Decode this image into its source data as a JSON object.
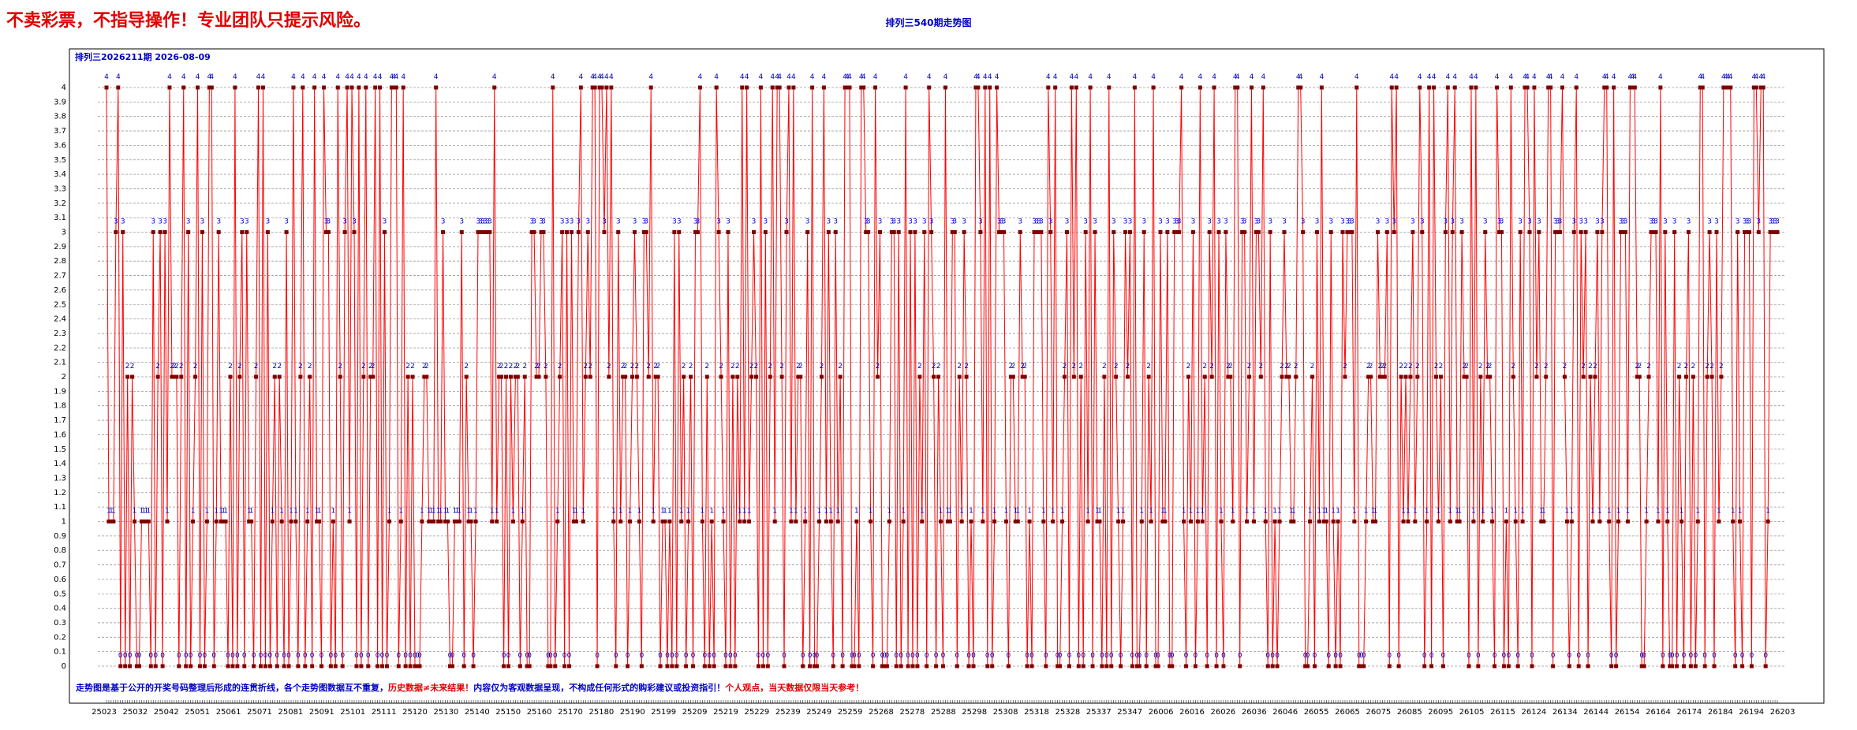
{
  "banner": "不卖彩票，不指导操作！专业团队只提示风险。",
  "chart_title": "排列三540期走势图",
  "chart_data": {
    "type": "line",
    "header": "排列三2026211期 2026-08-09",
    "footer": {
      "blue": "走势图是基于公开的开奖号码整理后形成的连贯折线，各个走势图数据互不重复，",
      "red1": "历史数据≠未来结果！",
      "blue2": "内容仅为客观数据呈现，不构成任何形式的购彩建议或投资指引！",
      "red2": "个人观点，当天数据仅限当天参考！"
    },
    "ylim": [
      0,
      4
    ],
    "y_ticks": [
      "0",
      "0.1",
      "0.2",
      "0.3",
      "0.4",
      "0.5",
      "0.6",
      "0.7",
      "0.8",
      "0.9",
      "1",
      "1.1",
      "1.2",
      "1.3",
      "1.4",
      "1.5",
      "1.6",
      "1.7",
      "1.8",
      "1.9",
      "2",
      "2.1",
      "2.2",
      "2.3",
      "2.4",
      "2.5",
      "2.6",
      "2.7",
      "2.8",
      "2.9",
      "3",
      "3.1",
      "3.2",
      "3.3",
      "3.4",
      "3.5",
      "3.6",
      "3.7",
      "3.8",
      "3.9",
      "4"
    ],
    "x_labels": [
      "25023",
      "25032",
      "25042",
      "25051",
      "25061",
      "25071",
      "25081",
      "25091",
      "25101",
      "25111",
      "25120",
      "25130",
      "25140",
      "25150",
      "25160",
      "25170",
      "25180",
      "25190",
      "25199",
      "25209",
      "25219",
      "25229",
      "25239",
      "25249",
      "25259",
      "25268",
      "25278",
      "25288",
      "25298",
      "25308",
      "25318",
      "25328",
      "25337",
      "25347",
      "26006",
      "26016",
      "26026",
      "26036",
      "26046",
      "26055",
      "26065",
      "26075",
      "26085",
      "26095",
      "26105",
      "26115",
      "26124",
      "26134",
      "26144",
      "26154",
      "26164",
      "26174",
      "26184",
      "26194",
      "26203"
    ],
    "grid": true,
    "line_color": "#ff0000",
    "marker_color": "#800000",
    "label_color": "#0000c8",
    "series": [
      {
        "values": [
          4,
          1,
          1,
          1,
          3,
          4,
          0,
          3,
          0,
          2,
          0,
          2,
          1,
          0,
          0,
          1,
          1,
          1,
          1,
          0,
          3,
          0,
          2,
          3,
          0,
          3,
          1,
          4,
          2,
          2,
          2,
          0,
          2,
          4,
          0,
          3,
          0,
          1,
          2,
          4,
          0,
          3,
          0,
          1,
          4,
          4,
          0,
          1,
          3,
          1,
          1,
          1,
          0,
          2,
          0,
          4,
          0,
          2,
          3,
          0,
          3,
          1,
          1,
          0,
          2,
          4,
          0,
          4,
          0,
          3,
          0,
          1,
          2,
          0,
          2,
          1,
          0,
          3,
          0,
          1,
          4,
          1,
          0,
          2,
          4,
          0,
          1,
          2,
          0,
          4,
          1,
          1,
          0,
          4,
          3,
          3,
          0,
          1,
          0,
          4,
          2,
          0,
          3,
          4,
          1,
          4,
          3,
          0,
          4,
          0,
          2,
          4,
          0,
          2,
          2,
          4,
          0,
          4,
          0,
          3,
          0,
          1,
          4,
          4,
          4,
          0,
          1,
          4,
          0,
          2,
          0,
          2,
          0,
          0,
          0,
          1,
          2,
          2,
          1,
          1,
          1,
          4,
          1,
          1,
          3,
          1,
          1,
          0,
          0,
          1,
          1,
          1,
          3,
          0,
          2,
          1,
          1,
          0,
          1,
          3,
          3,
          3,
          3,
          3,
          3,
          1,
          4,
          1,
          2,
          2,
          0,
          2,
          0,
          2,
          1,
          2,
          2,
          0,
          1,
          2,
          0,
          0,
          3,
          3,
          2,
          2,
          3,
          3,
          2,
          0,
          0,
          4,
          0,
          1,
          2,
          3,
          0,
          3,
          0,
          3,
          1,
          1,
          3,
          4,
          1,
          2,
          3,
          2,
          4,
          4,
          0,
          4,
          4,
          3,
          4,
          2,
          4,
          1,
          0,
          3,
          1,
          2,
          2,
          0,
          1,
          2,
          3,
          2,
          1,
          0,
          3,
          3,
          2,
          4,
          1,
          2,
          2,
          0,
          1,
          1,
          0,
          1,
          0,
          3,
          0,
          3,
          1,
          2,
          0,
          1,
          2,
          0,
          3,
          3,
          4,
          1,
          0,
          2,
          0,
          1,
          0,
          4,
          3,
          2,
          1,
          0,
          3,
          0,
          2,
          0,
          2,
          1,
          4,
          1,
          4,
          1,
          2,
          3,
          2,
          0,
          4,
          0,
          3,
          0,
          2,
          4,
          1,
          4,
          4,
          2,
          0,
          3,
          4,
          1,
          4,
          1,
          2,
          2,
          0,
          1,
          3,
          0,
          4,
          0,
          0,
          1,
          2,
          4,
          1,
          3,
          1,
          0,
          3,
          1,
          2,
          0,
          4,
          4,
          4,
          0,
          0,
          1,
          0,
          4,
          4,
          3,
          3,
          1,
          0,
          4,
          2,
          3,
          0,
          0,
          0,
          1,
          3,
          3,
          0,
          3,
          0,
          1,
          4,
          0,
          3,
          0,
          3,
          0,
          2,
          1,
          3,
          0,
          4,
          3,
          2,
          0,
          2,
          1,
          0,
          4,
          1,
          1,
          3,
          3,
          0,
          2,
          1,
          3,
          2,
          0,
          1,
          0,
          4,
          4,
          3,
          1,
          4,
          0,
          4,
          0,
          1,
          4,
          3,
          3,
          3,
          1,
          0,
          2,
          2,
          1,
          1,
          3,
          2,
          2,
          0,
          1,
          0,
          3,
          3,
          3,
          3,
          1,
          0,
          4,
          3,
          1,
          4,
          0,
          0,
          1,
          2,
          3,
          0,
          4,
          2,
          4,
          0,
          2,
          0,
          3,
          1,
          4,
          0,
          3,
          1,
          1,
          0,
          2,
          0,
          4,
          0,
          3,
          2,
          1,
          0,
          1,
          3,
          2,
          3,
          0,
          4,
          0,
          0,
          1,
          3,
          0,
          2,
          1,
          4,
          0,
          0,
          3,
          1,
          1,
          3,
          0,
          0,
          3,
          3,
          3,
          4,
          1,
          0,
          2,
          1,
          3,
          0,
          1,
          4,
          1,
          2,
          0,
          3,
          2,
          4,
          0,
          3,
          1,
          0,
          3,
          2,
          2,
          1,
          4,
          4,
          0,
          3,
          3,
          1,
          2,
          4,
          1,
          3,
          3,
          2,
          4,
          1,
          0,
          3,
          0,
          1,
          0,
          1,
          2,
          3,
          2,
          2,
          1,
          1,
          2,
          4,
          4,
          3,
          0,
          0,
          1,
          2,
          0,
          3,
          1,
          4,
          1,
          1,
          0,
          3,
          1,
          0,
          1,
          0,
          3,
          2,
          3,
          3,
          3,
          1,
          4,
          0,
          0,
          0,
          1,
          2,
          2,
          1,
          1,
          3,
          2,
          2,
          2,
          3,
          0,
          4,
          3,
          4,
          0,
          2,
          1,
          2,
          1,
          2,
          3,
          1,
          2,
          4,
          3,
          0,
          1,
          4,
          0,
          4,
          2,
          1,
          2,
          0,
          3,
          4,
          1,
          3,
          4,
          1,
          1,
          3,
          2,
          2,
          0,
          4,
          1,
          4,
          0,
          2,
          1,
          3,
          2,
          2,
          1,
          0,
          4,
          3,
          3,
          0,
          1,
          0,
          4,
          2,
          1,
          0,
          3,
          1,
          4,
          4,
          3,
          0,
          4,
          2,
          3,
          1,
          1,
          2,
          4,
          4,
          0,
          3,
          3,
          3,
          4,
          2,
          1,
          0,
          1,
          3,
          4,
          0,
          3,
          2,
          3,
          0,
          2,
          1,
          2,
          3,
          1,
          3,
          4,
          4,
          1,
          0,
          4,
          0,
          1,
          3,
          3,
          3,
          1,
          4,
          4,
          4,
          2,
          2,
          0,
          0,
          1,
          2,
          3,
          3,
          3,
          1,
          4,
          0,
          3,
          1,
          0,
          0,
          3,
          0,
          2,
          1,
          0,
          2,
          3,
          0,
          2,
          0,
          1,
          4,
          4,
          0,
          2,
          3,
          2,
          0,
          3,
          1,
          2,
          4,
          4,
          4,
          4,
          1,
          0,
          3,
          1,
          0,
          3,
          3,
          3,
          0,
          4,
          4,
          3,
          4,
          4,
          0,
          1,
          3,
          3,
          3,
          3
        ]
      }
    ]
  }
}
